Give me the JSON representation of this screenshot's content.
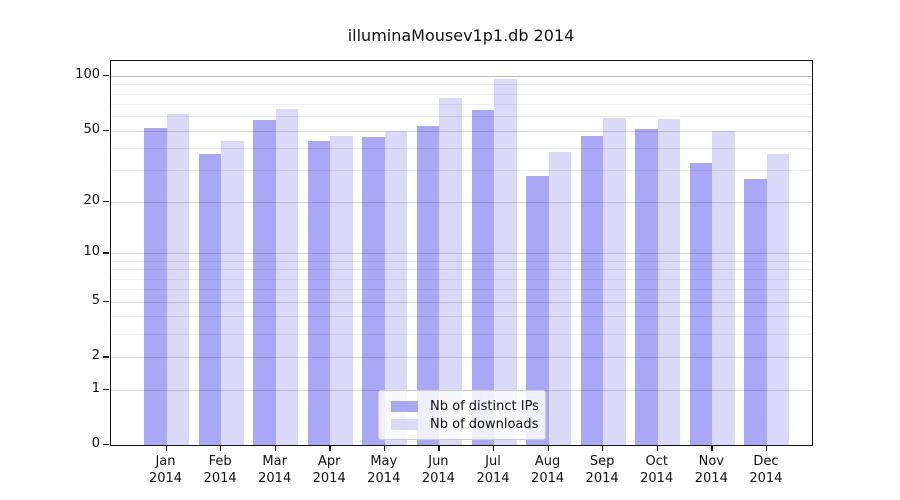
{
  "title": "illuminaMousev1p1.db 2014",
  "colors": {
    "bar_ips": "#a8a8f6",
    "bar_downloads": "#dadaf8",
    "axis": "#121212",
    "grid_major": "rgba(0,0,0,0.15)",
    "grid_minor": "rgba(0,0,0,0.07)",
    "grid_top": "rgba(0,0,0,0.26)"
  },
  "chart_data": {
    "type": "bar",
    "title": "illuminaMousev1p1.db 2014",
    "scale": "log1p",
    "categories": [
      "Jan",
      "Feb",
      "Mar",
      "Apr",
      "May",
      "Jun",
      "Jul",
      "Aug",
      "Sep",
      "Oct",
      "Nov",
      "Dec"
    ],
    "x_year_line": "2014",
    "series": [
      {
        "name": "Nb of distinct IPs",
        "color": "#a8a8f6",
        "values": [
          52,
          37,
          57,
          44,
          46,
          53,
          65,
          28,
          47,
          51,
          33,
          27
        ]
      },
      {
        "name": "Nb of downloads",
        "color": "#dadaf8",
        "values": [
          62,
          44,
          66,
          47,
          50,
          76,
          96,
          38,
          59,
          58,
          50,
          37
        ]
      }
    ],
    "y_ticks": [
      100,
      50,
      20,
      10,
      5,
      2,
      1,
      0
    ],
    "y_tick_labels": [
      "100",
      "50",
      "20",
      "10",
      "5",
      "2",
      "1",
      "0"
    ],
    "y_minor_gridlines": [
      3,
      4,
      6,
      7,
      8,
      9,
      30,
      40,
      60,
      70,
      80,
      90
    ],
    "ylim": [
      0,
      110
    ],
    "grid": true,
    "legend_position": "bottom-center"
  }
}
